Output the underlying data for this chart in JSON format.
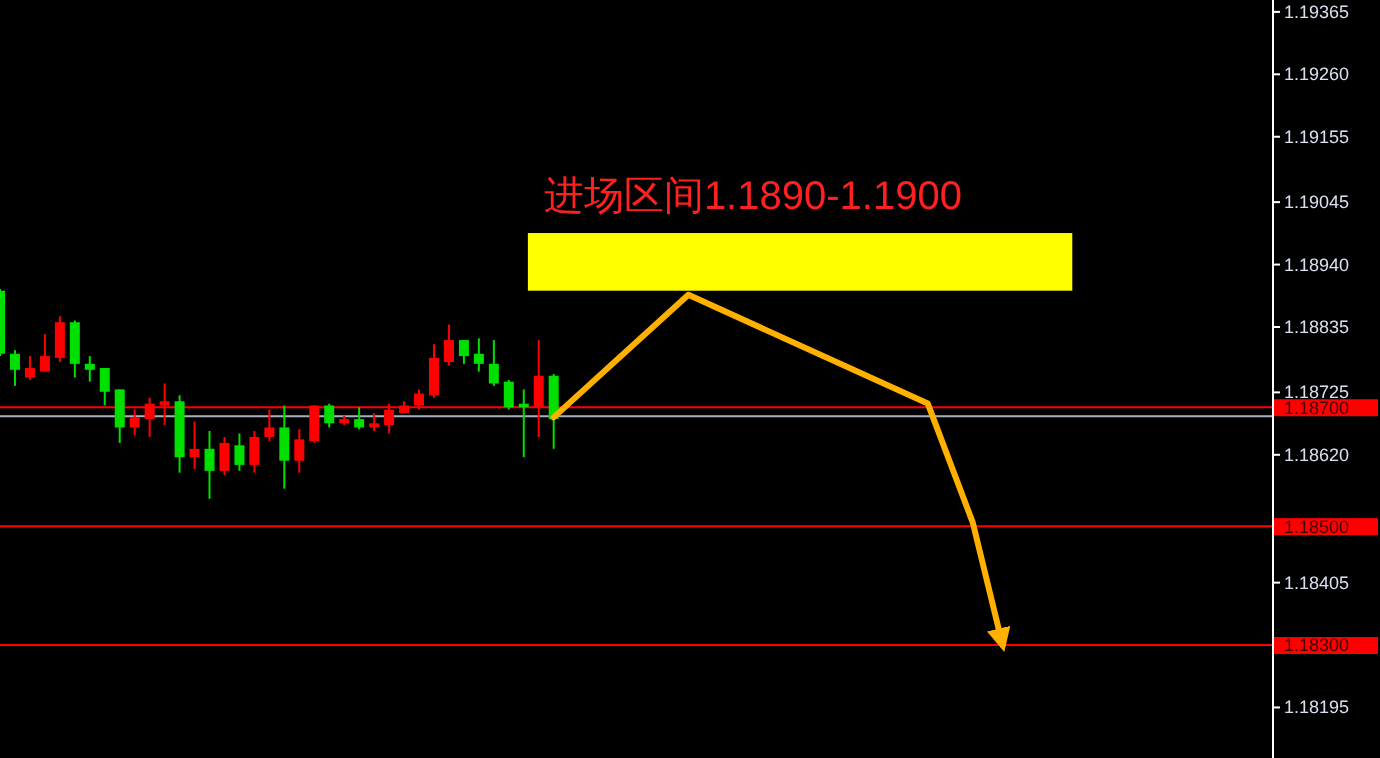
{
  "chart_data": {
    "type": "candlestick",
    "categories": [
      null,
      null,
      null,
      null,
      null,
      null,
      null,
      null,
      null,
      null,
      null,
      null,
      null,
      null,
      null,
      null,
      null,
      null,
      null,
      null,
      null,
      null,
      null,
      null,
      null,
      null,
      null,
      null,
      null,
      null,
      null,
      null,
      null,
      null,
      null,
      null,
      null,
      null,
      null,
      null,
      null,
      null,
      null,
      null,
      null,
      null,
      null,
      null,
      null,
      null,
      null,
      null,
      null,
      null,
      null,
      null,
      null,
      null,
      null,
      null,
      null,
      null,
      null,
      null,
      null,
      null,
      null,
      null,
      null,
      null,
      null,
      null,
      null,
      null,
      null,
      null,
      null,
      null,
      null,
      null,
      null,
      null,
      null,
      null,
      null
    ],
    "ohlc": [
      [
        1.18896,
        1.18899,
        1.18786,
        1.1879
      ],
      [
        1.1879,
        1.18796,
        1.18736,
        1.18763
      ],
      [
        1.1875,
        1.18786,
        1.18746,
        1.18766
      ],
      [
        1.1876,
        1.18823,
        1.1876,
        1.18786
      ],
      [
        1.18783,
        1.18853,
        1.18776,
        1.18843
      ],
      [
        1.18843,
        1.18846,
        1.1875,
        1.18773
      ],
      [
        1.18773,
        1.18786,
        1.18743,
        1.18763
      ],
      [
        1.18766,
        1.18766,
        1.18703,
        1.18726
      ],
      [
        1.1873,
        1.1873,
        1.1864,
        1.18666
      ],
      [
        1.18666,
        1.18696,
        1.18653,
        1.18683
      ],
      [
        1.1868,
        1.18716,
        1.1865,
        1.18706
      ],
      [
        1.18703,
        1.1874,
        1.1867,
        1.1871
      ],
      [
        1.1871,
        1.1872,
        1.1859,
        1.18616
      ],
      [
        1.18616,
        1.18676,
        1.18596,
        1.1863
      ],
      [
        1.1863,
        1.1866,
        1.18546,
        1.18593
      ],
      [
        1.18593,
        1.1865,
        1.18586,
        1.1864
      ],
      [
        1.18636,
        1.18656,
        1.18593,
        1.18603
      ],
      [
        1.18603,
        1.1866,
        1.1859,
        1.1865
      ],
      [
        1.1865,
        1.18696,
        1.18643,
        1.18666
      ],
      [
        1.18666,
        1.18703,
        1.18563,
        1.1861
      ],
      [
        1.1861,
        1.18663,
        1.1859,
        1.18646
      ],
      [
        1.18643,
        1.18703,
        1.1864,
        1.18703
      ],
      [
        1.18703,
        1.18706,
        1.18666,
        1.18673
      ],
      [
        1.18673,
        1.18686,
        1.1867,
        1.1868
      ],
      [
        1.1868,
        1.187,
        1.18663,
        1.18666
      ],
      [
        1.18666,
        1.1869,
        1.1866,
        1.18673
      ],
      [
        1.1867,
        1.18706,
        1.18656,
        1.18696
      ],
      [
        1.1869,
        1.1871,
        1.1869,
        1.18703
      ],
      [
        1.18703,
        1.1873,
        1.18696,
        1.18723
      ],
      [
        1.1872,
        1.18806,
        1.18716,
        1.18783
      ],
      [
        1.18776,
        1.18839,
        1.1877,
        1.18813
      ],
      [
        1.18813,
        1.18813,
        1.18773,
        1.18786
      ],
      [
        1.1879,
        1.18816,
        1.1876,
        1.18773
      ],
      [
        1.18773,
        1.18813,
        1.18736,
        1.1874
      ],
      [
        1.18743,
        1.18746,
        1.18696,
        1.187
      ],
      [
        1.18706,
        1.1873,
        1.18616,
        1.187
      ],
      [
        1.187,
        1.18813,
        1.1865,
        1.18753
      ],
      [
        1.18753,
        1.18756,
        1.1863,
        1.1868
      ],
      null,
      null,
      null,
      null,
      null,
      null,
      null,
      null,
      null,
      null,
      null,
      null,
      null,
      null,
      null,
      null,
      null,
      null,
      null,
      null,
      null,
      null,
      null,
      null,
      null,
      null,
      null,
      null,
      null,
      null,
      null,
      null,
      null,
      null,
      null,
      null,
      null,
      null,
      null,
      null,
      null,
      null,
      null,
      null,
      null,
      null,
      null
    ],
    "colors": [
      "#00e000",
      "#00e000",
      "#ff0000",
      "#ff0000",
      "#ff0000",
      "#00e000",
      "#00e000",
      "#00e000",
      "#00e000",
      "#ff0000",
      "#ff0000",
      "#ff0000",
      "#00e000",
      "#ff0000",
      "#00e000",
      "#ff0000",
      "#00e000",
      "#ff0000",
      "#ff0000",
      "#00e000",
      "#ff0000",
      "#ff0000",
      "#00e000",
      "#ff0000",
      "#00e000",
      "#ff0000",
      "#ff0000",
      "#ff0000",
      "#ff0000",
      "#ff0000",
      "#ff0000",
      "#00e000",
      "#00e000",
      "#00e000",
      "#00e000",
      "#00e000",
      "#ff0000",
      "#00e000",
      null,
      null,
      null,
      null,
      null,
      null,
      null,
      null,
      null,
      null,
      null,
      null,
      null,
      null,
      null,
      null,
      null,
      null,
      null,
      null,
      null,
      null,
      null,
      null,
      null,
      null,
      null,
      null,
      null,
      null,
      null,
      null,
      null,
      null,
      null,
      null,
      null,
      null,
      null,
      null,
      null,
      null,
      null,
      null,
      null,
      null,
      null
    ],
    "ylim": [
      1.1811,
      1.19385
    ],
    "yticks": [
      {
        "value": 1.19365,
        "label": "1.19365"
      },
      {
        "value": 1.1926,
        "label": "1.19260"
      },
      {
        "value": 1.19155,
        "label": "1.19155"
      },
      {
        "value": 1.19045,
        "label": "1.19045"
      },
      {
        "value": 1.1894,
        "label": "1.18940"
      },
      {
        "value": 1.18835,
        "label": "1.18835"
      },
      {
        "value": 1.18725,
        "label": "1.18725"
      },
      {
        "value": 1.1862,
        "label": "1.18620"
      },
      {
        "value": 1.18405,
        "label": "1.18405"
      },
      {
        "value": 1.18195,
        "label": "1.18195"
      }
    ],
    "tick_labels": "y",
    "ref_lines": [
      {
        "axis": "y",
        "value": 1.18685,
        "label": null,
        "color": "#a8b0c0"
      },
      {
        "axis": "y",
        "value": 1.187,
        "label": "1.18700",
        "color": "#ff0000"
      },
      {
        "axis": "y",
        "value": 1.185,
        "label": "1.18500",
        "color": "#ff0000"
      },
      {
        "axis": "y",
        "value": 1.183,
        "label": "1.18300",
        "color": "#ff0000"
      }
    ],
    "series": [
      {
        "type": "line",
        "color": "#ffb000",
        "values": [
          null,
          null,
          null,
          null,
          null,
          null,
          null,
          null,
          null,
          null,
          null,
          null,
          null,
          null,
          null,
          null,
          null,
          null,
          null,
          null,
          null,
          null,
          null,
          null,
          null,
          null,
          null,
          null,
          null,
          null,
          null,
          null,
          null,
          null,
          null,
          null,
          null,
          1.18683,
          null,
          null,
          null,
          null,
          null,
          null,
          null,
          null,
          1.18889,
          null,
          null,
          null,
          null,
          null,
          null,
          null,
          null,
          null,
          null,
          null,
          null,
          null,
          null,
          null,
          1.18706,
          null,
          null,
          1.18506,
          null,
          1.183,
          null,
          null,
          null,
          null,
          null,
          null,
          null,
          null,
          null,
          null,
          null,
          null,
          null,
          null,
          null,
          null,
          null
        ]
      }
    ],
    "bands": [
      {
        "axis": "y",
        "from": 1.18896,
        "to": 1.18993,
        "label": "进场区间1.1890-1.1900",
        "color": "#ffff00"
      }
    ]
  }
}
